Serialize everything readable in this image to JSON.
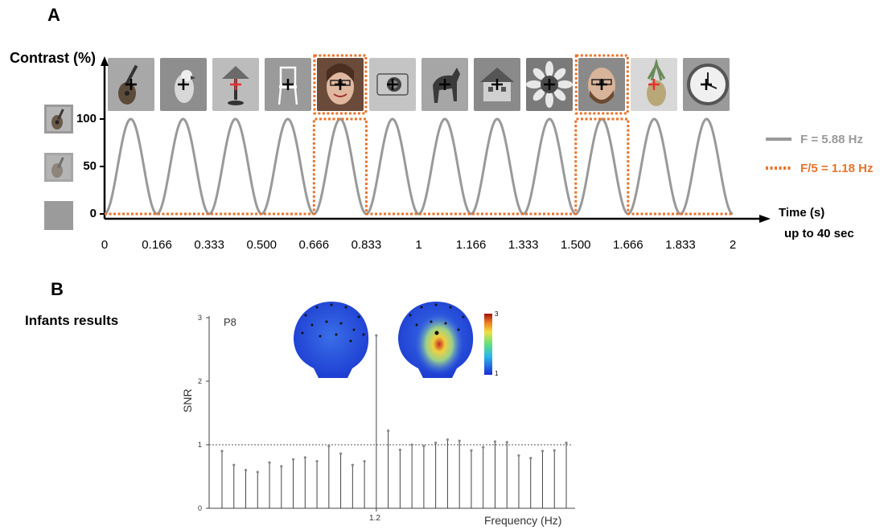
{
  "panel_a": {
    "letter": "A",
    "ylabel": "Contrast (%)",
    "xlabel_line1": "Time (s)",
    "xlabel_line2": "up to 40 sec",
    "legend": [
      {
        "label": "F = 5.88 Hz",
        "color": "#999999",
        "style": "solid"
      },
      {
        "label": "F/5 = 1.18 Hz",
        "color": "#e8732a",
        "style": "dotted"
      }
    ],
    "image_sequence": [
      "guitar",
      "parrot",
      "lamp",
      "chair",
      "face-woman",
      "camera",
      "horse",
      "house",
      "sunflower",
      "face-man",
      "pineapple",
      "clock"
    ],
    "fixation_cross_colors": [
      "#000000",
      "#000000",
      "#e53030",
      "#000000",
      "#000000",
      "#000000",
      "#000000",
      "#000000",
      "#000000",
      "#000000",
      "#e53030",
      "#000000"
    ],
    "side_thumbnails": [
      "guitar-full-contrast",
      "guitar-half-contrast",
      "gray-zero-contrast"
    ]
  },
  "chart_data": [
    {
      "type": "line",
      "title": "",
      "ylabel": "Contrast (%)",
      "xlabel": "Time (s)",
      "y_ticks": [
        "0",
        "50",
        "100"
      ],
      "ylim": [
        0,
        100
      ],
      "x_ticks": [
        "0",
        "0.166",
        "0.333",
        "0.500",
        "0.666",
        "0.833",
        "1",
        "1.166",
        "1.333",
        "1.500",
        "1.666",
        "1.833",
        "2"
      ],
      "xlim": [
        0,
        2
      ],
      "series": [
        {
          "name": "F = 5.88 Hz",
          "frequency_hz": 5.88,
          "shape": "sinusoid",
          "cycles": 12,
          "min": 0,
          "max": 100
        },
        {
          "name": "F/5 = 1.18 Hz",
          "frequency_hz": 1.18,
          "shape": "square-window",
          "highlighted_cycles": [
            5,
            10
          ]
        }
      ]
    },
    {
      "type": "bar",
      "panel": "B",
      "panel_label": "B",
      "left_label": "Infants results",
      "channel": "P8",
      "xlabel": "Frequency (Hz)",
      "ylabel": "SNR",
      "ylim": [
        0,
        3
      ],
      "y_ticks": [
        "0",
        "1",
        "2",
        "3"
      ],
      "x_tick_label": "1.2",
      "reference_line": 1,
      "values": [
        0.9,
        0.68,
        0.6,
        0.57,
        0.72,
        0.66,
        0.77,
        0.8,
        0.74,
        0.98,
        0.86,
        0.68,
        0.74,
        2.72,
        1.22,
        0.92,
        1.0,
        0.98,
        1.03,
        1.08,
        1.06,
        0.91,
        0.96,
        1.05,
        1.04,
        0.83,
        0.79,
        0.9,
        0.91,
        1.03
      ],
      "peak_index": 13,
      "colorbar": {
        "min_label": "1",
        "max_label": "3"
      }
    }
  ]
}
